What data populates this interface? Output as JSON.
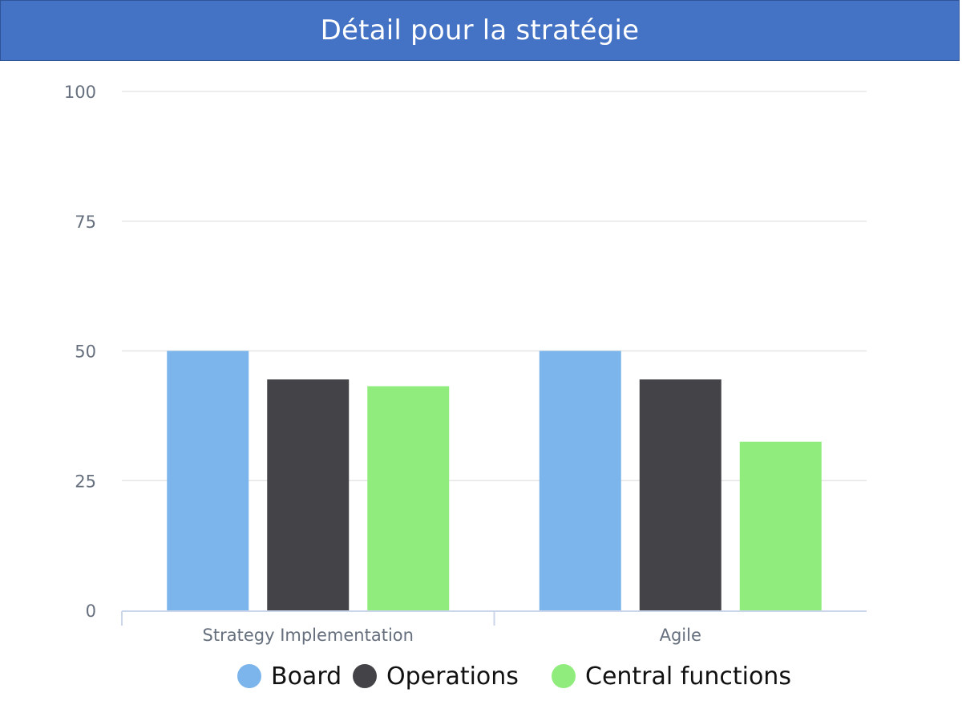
{
  "header": {
    "title": "Détail pour la stratégie"
  },
  "colors": {
    "header_bg": "#4472c4",
    "board": "#7cb5ec",
    "operations": "#434348",
    "central": "#90ed7d",
    "grid": "#e6e6e6",
    "axis": "#ccd6eb",
    "tick_text": "#666f7d"
  },
  "chart_data": {
    "type": "bar",
    "title": "",
    "xlabel": "",
    "ylabel": "",
    "categories": [
      "Strategy Implementation",
      "Agile"
    ],
    "ylim": [
      0,
      100
    ],
    "yticks": [
      0,
      25,
      50,
      75,
      100
    ],
    "grid": true,
    "legend_position": "bottom",
    "series": [
      {
        "name": "Board",
        "color": "#7cb5ec",
        "values": [
          50,
          50
        ]
      },
      {
        "name": "Operations",
        "color": "#434348",
        "values": [
          44.5,
          44.5
        ]
      },
      {
        "name": "Central functions",
        "color": "#90ed7d",
        "values": [
          43.2,
          32.5
        ]
      }
    ]
  },
  "legend": {
    "items": [
      {
        "label": "Board",
        "color": "#7cb5ec",
        "icon": "circle-marker"
      },
      {
        "label": "Operations",
        "color": "#434348",
        "icon": "circle-marker"
      },
      {
        "label": "Central functions",
        "color": "#90ed7d",
        "icon": "circle-marker"
      }
    ]
  }
}
